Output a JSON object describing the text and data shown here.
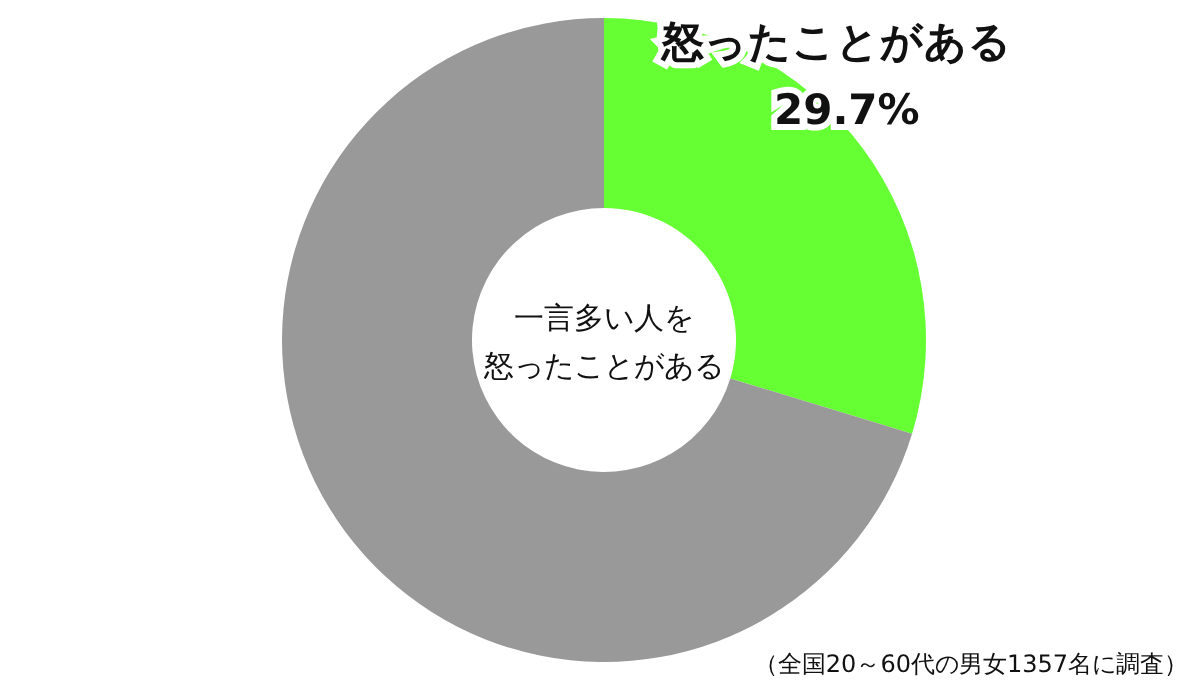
{
  "chart_data": {
    "type": "donut",
    "title": "一言多い人を",
    "subtitle": "怒ったことがある",
    "categories": [
      "怒ったことがある",
      null
    ],
    "values": [
      29.7,
      70.3
    ],
    "colors": [
      "#66ff33",
      "#999999"
    ],
    "value_labels": [
      "29.7%",
      null
    ],
    "annotations": [
      "（全国20～60代の男女1357名に調査）"
    ]
  }
}
